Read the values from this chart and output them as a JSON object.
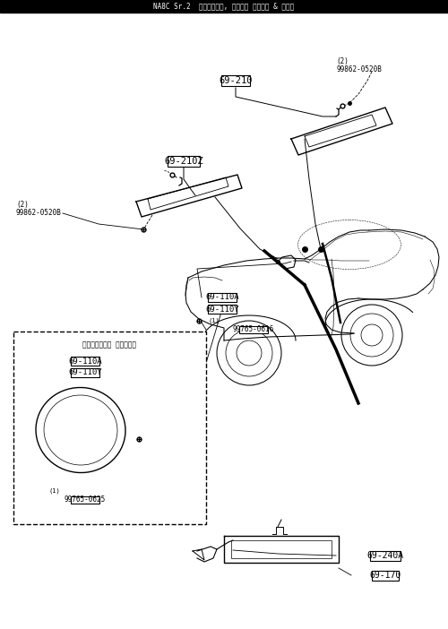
{
  "bg_color": "#ffffff",
  "fig_w": 5.0,
  "fig_h": 7.02,
  "dpi": 100,
  "title_text": "NA8C Sr.2  サンバイザー, アシスト ハンドル & ミラー",
  "label_69_210": "69-210",
  "label_69_210Z": "69-210Z",
  "label_99862": "99862-0520B",
  "label_69_110A": "69-110A",
  "label_69_110Y": "69-110Y",
  "label_99765_0616": "99765-0616",
  "label_99765_0625": "99765-0625",
  "label_69_240A": "69-240A",
  "label_69_170": "69-170",
  "label_door_mirror": "（ドアーミラー リモコン）"
}
